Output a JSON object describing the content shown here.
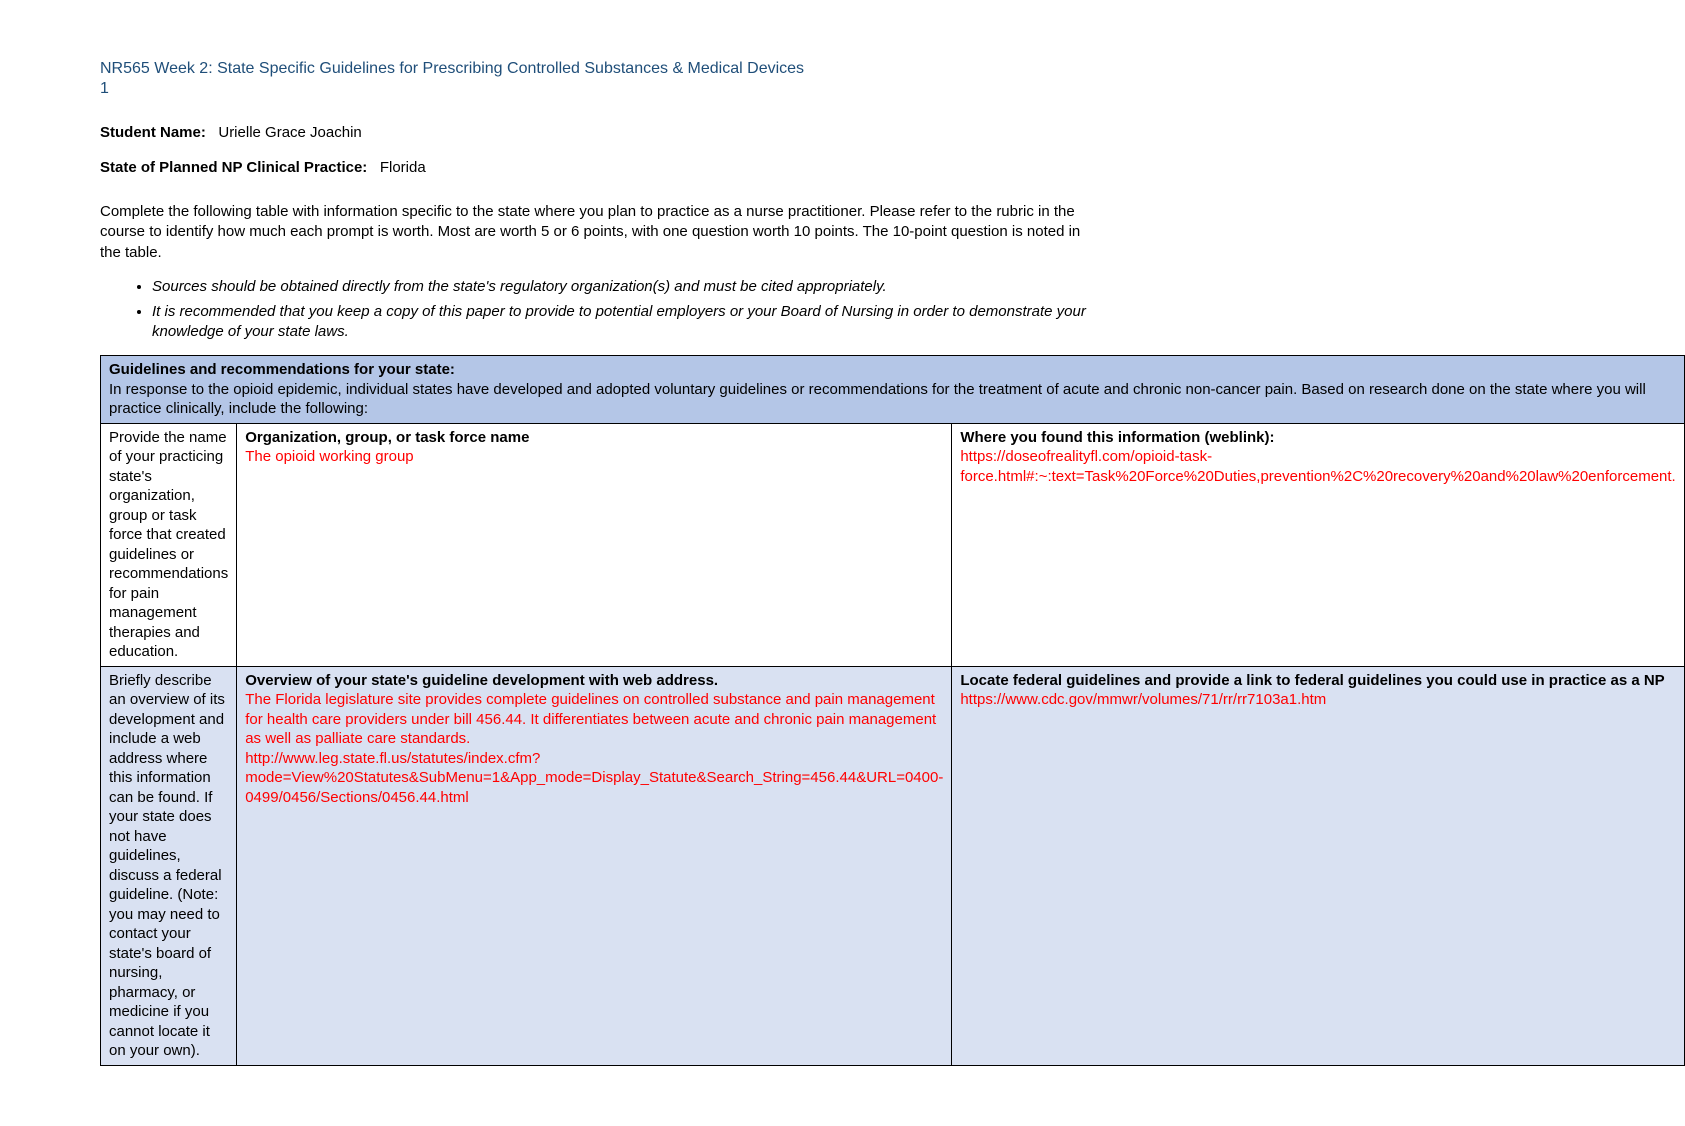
{
  "header": {
    "title": "NR565 Week 2: State Specific Guidelines for Prescribing Controlled Substances & Medical Devices",
    "page_num": "1"
  },
  "student": {
    "label": "Student Name:",
    "value": "Urielle Grace Joachin"
  },
  "state": {
    "label": "State of Planned NP Clinical Practice:",
    "value": "Florida"
  },
  "instructions": "Complete the following table with information specific to the state where you plan to practice as a nurse practitioner.  Please refer to the rubric in the course to identify how much each prompt is worth.  Most are worth 5 or 6 points, with one question worth 10 points.  The 10-point question is noted in the table.",
  "notes": [
    "Sources should be obtained directly from the state's regulatory organization(s) and must be cited appropriately.",
    "It is recommended that you keep a copy of this paper to provide to potential employers or your Board of Nursing in order to demonstrate your knowledge of your state laws."
  ],
  "section_header": {
    "title": "Guidelines and recommendations for your state:",
    "body": "In response to the opioid epidemic, individual states have developed and adopted voluntary guidelines or recommendations for the treatment of acute and chronic non-cancer pain. Based on research done on the state where you will practice clinically, include the following:"
  },
  "row1": {
    "prompt": "Provide the name of your practicing state's organization, group or task force that created guidelines or recommendations for pain management therapies and education.",
    "col2_label": "Organization, group, or task force name",
    "col2_value": "The opioid working group",
    "col3_label": "Where you found this information (weblink):",
    "col3_value": "https://doseofrealityfl.com/opioid-task-force.html#:~:text=Task%20Force%20Duties,prevention%2C%20recovery%20and%20law%20enforcement."
  },
  "row2": {
    "prompt": "Briefly describe an overview of its development and include a web address where this information can be found. If your state does not have guidelines, discuss a federal guideline. (Note: you may need to contact your state's board of nursing, pharmacy, or medicine if you cannot locate it on your own).",
    "col2_label": "Overview of your state's guideline development with web address.",
    "col2_text": "The Florida legislature site provides complete guidelines on controlled substance and pain management for health care providers under bill 456.44. It differentiates between acute and chronic pain management as well as palliate care standards.",
    "col2_link": "http://www.leg.state.fl.us/statutes/index.cfm?mode=View%20Statutes&SubMenu=1&App_mode=Display_Statute&Search_String=456.44&URL=0400-0499/0456/Sections/0456.44.html",
    "col3_label": "Locate federal guidelines and provide a link to federal guidelines you could use in practice as a NP",
    "col3_link": "https://www.cdc.gov/mmwr/volumes/71/rr/rr7103a1.htm"
  }
}
